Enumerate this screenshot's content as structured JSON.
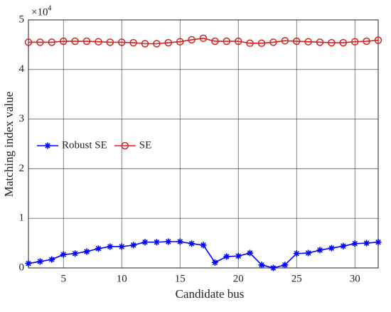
{
  "chart_data": {
    "type": "line",
    "x": [
      2,
      3,
      4,
      5,
      6,
      7,
      8,
      9,
      10,
      11,
      12,
      13,
      14,
      15,
      16,
      17,
      18,
      19,
      20,
      21,
      22,
      23,
      24,
      25,
      26,
      27,
      28,
      29,
      30,
      31,
      32
    ],
    "series": [
      {
        "name": "Robust SE",
        "color": "#0000ff",
        "marker": "star",
        "values": [
          0.09,
          0.13,
          0.17,
          0.27,
          0.29,
          0.33,
          0.39,
          0.43,
          0.43,
          0.46,
          0.52,
          0.52,
          0.53,
          0.53,
          0.49,
          0.46,
          0.11,
          0.23,
          0.24,
          0.3,
          0.06,
          0.0,
          0.06,
          0.29,
          0.3,
          0.36,
          0.4,
          0.44,
          0.49,
          0.5,
          0.52
        ]
      },
      {
        "name": "SE",
        "color": "#d62020",
        "marker": "circle",
        "values": [
          4.55,
          4.55,
          4.55,
          4.57,
          4.57,
          4.57,
          4.56,
          4.55,
          4.55,
          4.54,
          4.52,
          4.52,
          4.54,
          4.56,
          4.6,
          4.63,
          4.57,
          4.57,
          4.57,
          4.53,
          4.53,
          4.55,
          4.58,
          4.57,
          4.56,
          4.55,
          4.54,
          4.54,
          4.56,
          4.57,
          4.59
        ]
      }
    ],
    "xlabel": "Candidate bus",
    "ylabel": "Matching index value",
    "y_exponent_label": "×10",
    "y_exponent": "4",
    "xlim": [
      2,
      32
    ],
    "ylim": [
      0,
      5
    ],
    "xticks": [
      5,
      10,
      15,
      20,
      25,
      30
    ],
    "yticks": [
      0,
      1,
      2,
      3,
      4,
      5
    ],
    "grid": true,
    "legend": "left"
  }
}
